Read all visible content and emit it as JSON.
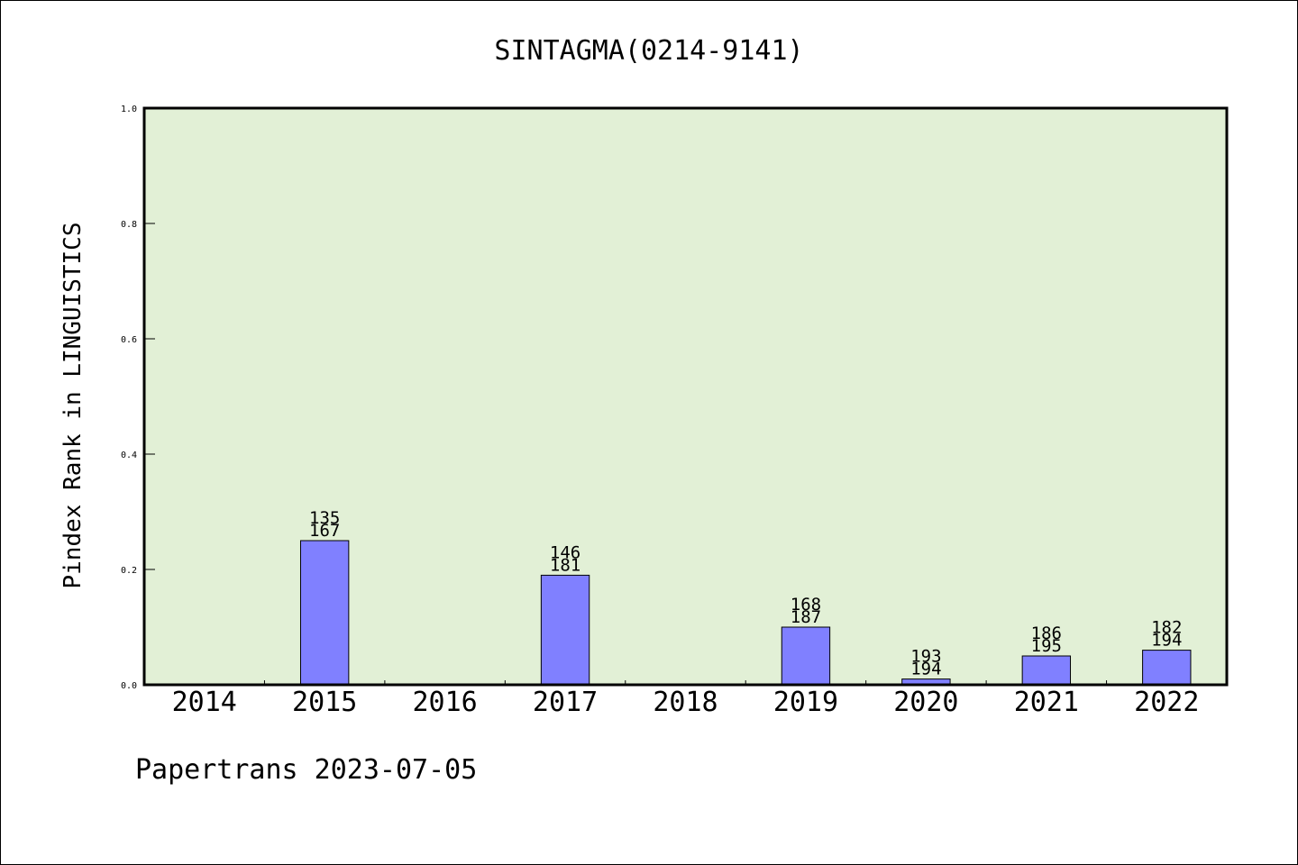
{
  "chart_data": {
    "type": "bar",
    "title": "SINTAGMA(0214-9141)",
    "ylabel": "Pindex Rank in LINGUISTICS",
    "xlabel": "",
    "ylim": [
      0,
      1.0
    ],
    "yticks": [
      "0.0",
      "0.2",
      "0.4",
      "0.6",
      "0.8",
      "1.0"
    ],
    "categories": [
      "2014",
      "2015",
      "2016",
      "2017",
      "2018",
      "2019",
      "2020",
      "2021",
      "2022"
    ],
    "values": [
      0,
      0.25,
      0,
      0.19,
      0,
      0.1,
      0.01,
      0.05,
      0.06
    ],
    "labels_top": [
      "",
      "135",
      "",
      "146",
      "",
      "168",
      "193",
      "186",
      "182"
    ],
    "labels_bottom": [
      "",
      "167",
      "",
      "181",
      "",
      "187",
      "194",
      "195",
      "194"
    ],
    "grid": false,
    "colors": {
      "bar": "#8080ff",
      "plot_background": "#e2f0d6",
      "border": "#000000"
    }
  },
  "footer": "Papertrans 2023-07-05"
}
